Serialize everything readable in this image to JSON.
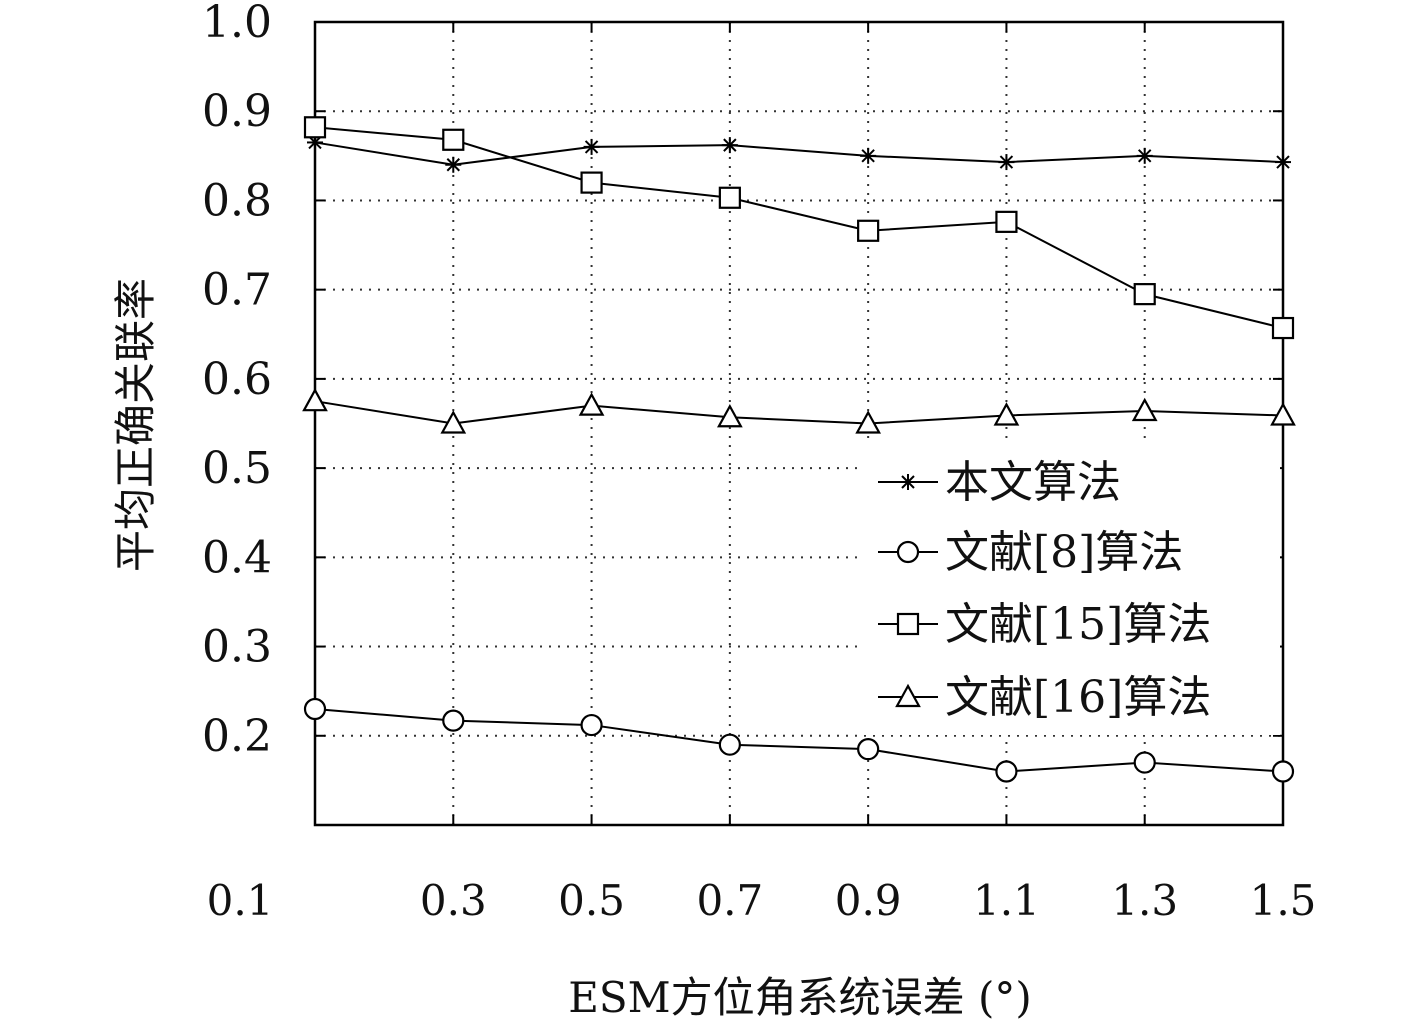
{
  "chart_data": {
    "type": "line",
    "xlabel": "ESM方位角系统误差 (°)",
    "ylabel": "平均正确关联率",
    "x_ticks": [
      "0.1",
      "0.3",
      "0.5",
      "0.7",
      "0.9",
      "1.1",
      "1.3",
      "1.5"
    ],
    "y_ticks": [
      "0.2",
      "0.3",
      "0.4",
      "0.5",
      "0.6",
      "0.7",
      "0.8",
      "0.9",
      "1.0"
    ],
    "xlim": [
      0.1,
      1.5
    ],
    "ylim": [
      0.1,
      1.0
    ],
    "grid": true,
    "legend_position": "right",
    "x": [
      0.1,
      0.3,
      0.5,
      0.7,
      0.9,
      1.1,
      1.3,
      1.5
    ],
    "series": [
      {
        "name": "本文算法",
        "marker": "star",
        "values": [
          0.865,
          0.84,
          0.86,
          0.862,
          0.85,
          0.843,
          0.85,
          0.843
        ]
      },
      {
        "name": "文献[8]算法",
        "marker": "circle",
        "values": [
          0.23,
          0.217,
          0.212,
          0.19,
          0.185,
          0.16,
          0.17,
          0.16
        ]
      },
      {
        "name": "文献[15]算法",
        "marker": "square",
        "values": [
          0.882,
          0.868,
          0.82,
          0.803,
          0.766,
          0.776,
          0.695,
          0.657
        ]
      },
      {
        "name": "文献[16]算法",
        "marker": "triangle",
        "values": [
          0.575,
          0.55,
          0.57,
          0.557,
          0.55,
          0.559,
          0.564,
          0.559
        ]
      }
    ]
  }
}
